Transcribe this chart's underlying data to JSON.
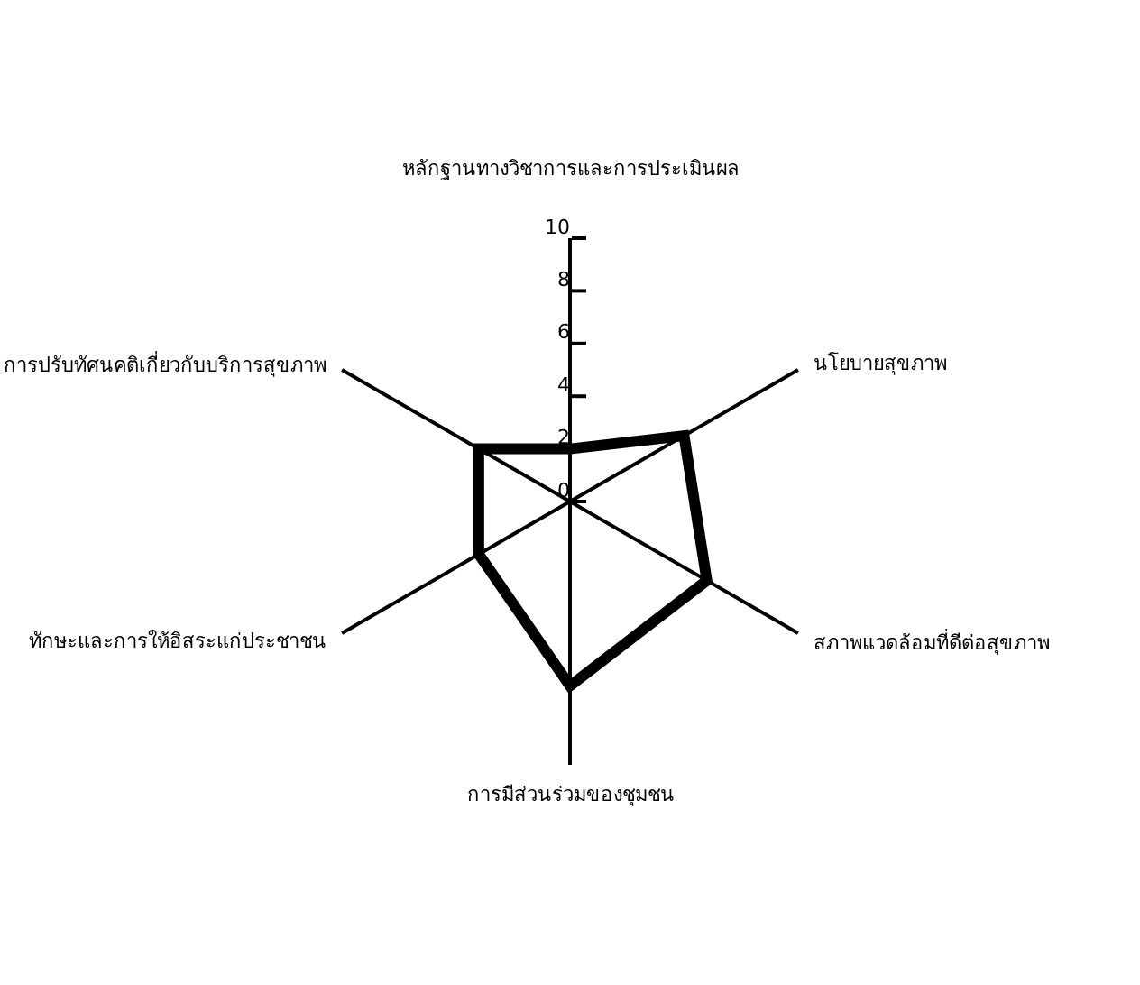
{
  "chart_data": {
    "type": "radar",
    "categories": [
      "หลักฐานทางวิชาการและการประเมินผล",
      "นโยบายสุขภาพ",
      "สภาพแวดล้อมที่ดีต่อสุขภาพ",
      "การมีส่วนร่วมของชุมชน",
      "ทักษะและการให้อิสระแก่ประชาชน",
      "การปรับทัศนคติเกี่ยวกับบริการสุขภาพ"
    ],
    "series": [
      {
        "color": "#000000",
        "values": [
          2,
          5,
          6,
          7,
          4,
          4
        ]
      }
    ],
    "ylim": [
      0,
      10
    ],
    "yticks": [
      0,
      2,
      4,
      6,
      8,
      10
    ],
    "grid": "x",
    "marker": "none",
    "line_style": "solid"
  }
}
